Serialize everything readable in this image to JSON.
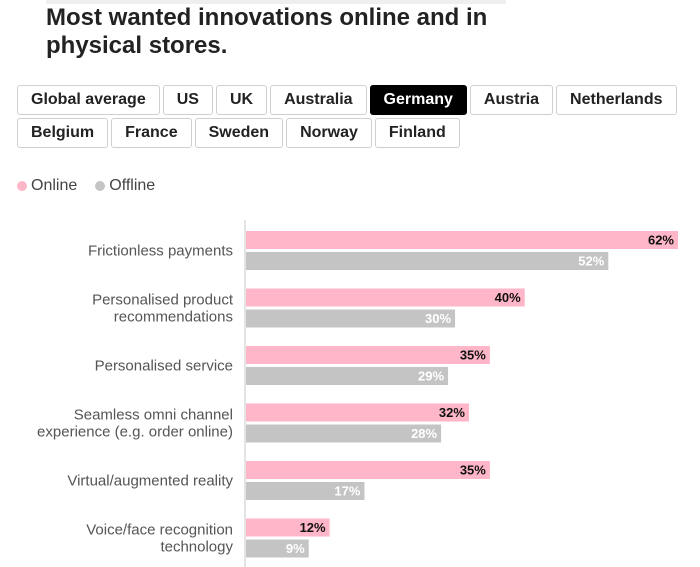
{
  "title": "Most wanted innovations online and in physical stores.",
  "tabs": {
    "row1": [
      "Global average",
      "US",
      "UK",
      "Australia",
      "Germany",
      "Austria",
      "Netherlands"
    ],
    "row2": [
      "Belgium",
      "France",
      "Sweden",
      "Norway",
      "Finland"
    ],
    "active": "Germany"
  },
  "colors": {
    "online": "#ffb6c8",
    "offline": "#c4c4c4",
    "axis": "#c8c8c8"
  },
  "chart_data": {
    "type": "bar",
    "orientation": "horizontal",
    "categories": [
      [
        "Frictionless payments"
      ],
      [
        "Personalised product",
        "recommendations"
      ],
      [
        "Personalised service"
      ],
      [
        "Seamless omni channel",
        "experience (e.g. order online)"
      ],
      [
        "Virtual/augmented reality"
      ],
      [
        "Voice/face recognition",
        "technology"
      ]
    ],
    "series": [
      {
        "name": "Online",
        "values": [
          62,
          40,
          35,
          32,
          35,
          12
        ]
      },
      {
        "name": "Offline",
        "values": [
          52,
          30,
          29,
          28,
          17,
          9
        ]
      }
    ],
    "value_suffix": "%",
    "xlim": [
      0,
      62
    ],
    "legend_position": "top-left",
    "grid": false
  }
}
